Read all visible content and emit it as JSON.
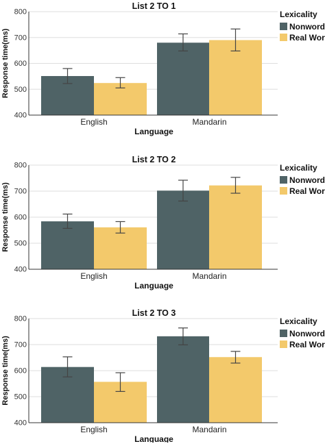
{
  "chart_data": [
    {
      "type": "bar",
      "title": "List 2 TO 1",
      "xlabel": "Language",
      "ylabel": "Response time(ms)",
      "categories": [
        "English",
        "Mandarin"
      ],
      "ylim": [
        400,
        800
      ],
      "yticks": [
        400,
        500,
        600,
        700,
        800
      ],
      "grid": true,
      "legend": {
        "title": "Lexicality",
        "position": "right"
      },
      "series": [
        {
          "name": "Nonword",
          "color": "#4f6366",
          "values": [
            551,
            680
          ],
          "error_low": [
            522,
            648
          ],
          "error_high": [
            580,
            714
          ]
        },
        {
          "name": "Real Word",
          "color": "#f3c96b",
          "values": [
            524,
            690
          ],
          "error_low": [
            505,
            648
          ],
          "error_high": [
            545,
            733
          ]
        }
      ]
    },
    {
      "type": "bar",
      "title": "List 2 TO 2",
      "xlabel": "Language",
      "ylabel": "Response time(ms)",
      "categories": [
        "English",
        "Mandarin"
      ],
      "ylim": [
        400,
        800
      ],
      "yticks": [
        400,
        500,
        600,
        700,
        800
      ],
      "grid": true,
      "legend": {
        "title": "Lexicality",
        "position": "right"
      },
      "series": [
        {
          "name": "Nonword",
          "color": "#4f6366",
          "values": [
            584,
            702
          ],
          "error_low": [
            557,
            662
          ],
          "error_high": [
            612,
            742
          ]
        },
        {
          "name": "Real Word",
          "color": "#f3c96b",
          "values": [
            561,
            722
          ],
          "error_low": [
            539,
            692
          ],
          "error_high": [
            583,
            753
          ]
        }
      ]
    },
    {
      "type": "bar",
      "title": "List 2 TO 3",
      "xlabel": "Language",
      "ylabel": "Response time(ms)",
      "categories": [
        "English",
        "Mandarin"
      ],
      "ylim": [
        400,
        800
      ],
      "yticks": [
        400,
        500,
        600,
        700,
        800
      ],
      "grid": true,
      "legend": {
        "title": "Lexicality",
        "position": "right"
      },
      "series": [
        {
          "name": "Nonword",
          "color": "#4f6366",
          "values": [
            614,
            732
          ],
          "error_low": [
            576,
            699
          ],
          "error_high": [
            653,
            764
          ]
        },
        {
          "name": "Real Word",
          "color": "#f3c96b",
          "values": [
            557,
            652
          ],
          "error_low": [
            520,
            629
          ],
          "error_high": [
            592,
            674
          ]
        }
      ]
    }
  ]
}
